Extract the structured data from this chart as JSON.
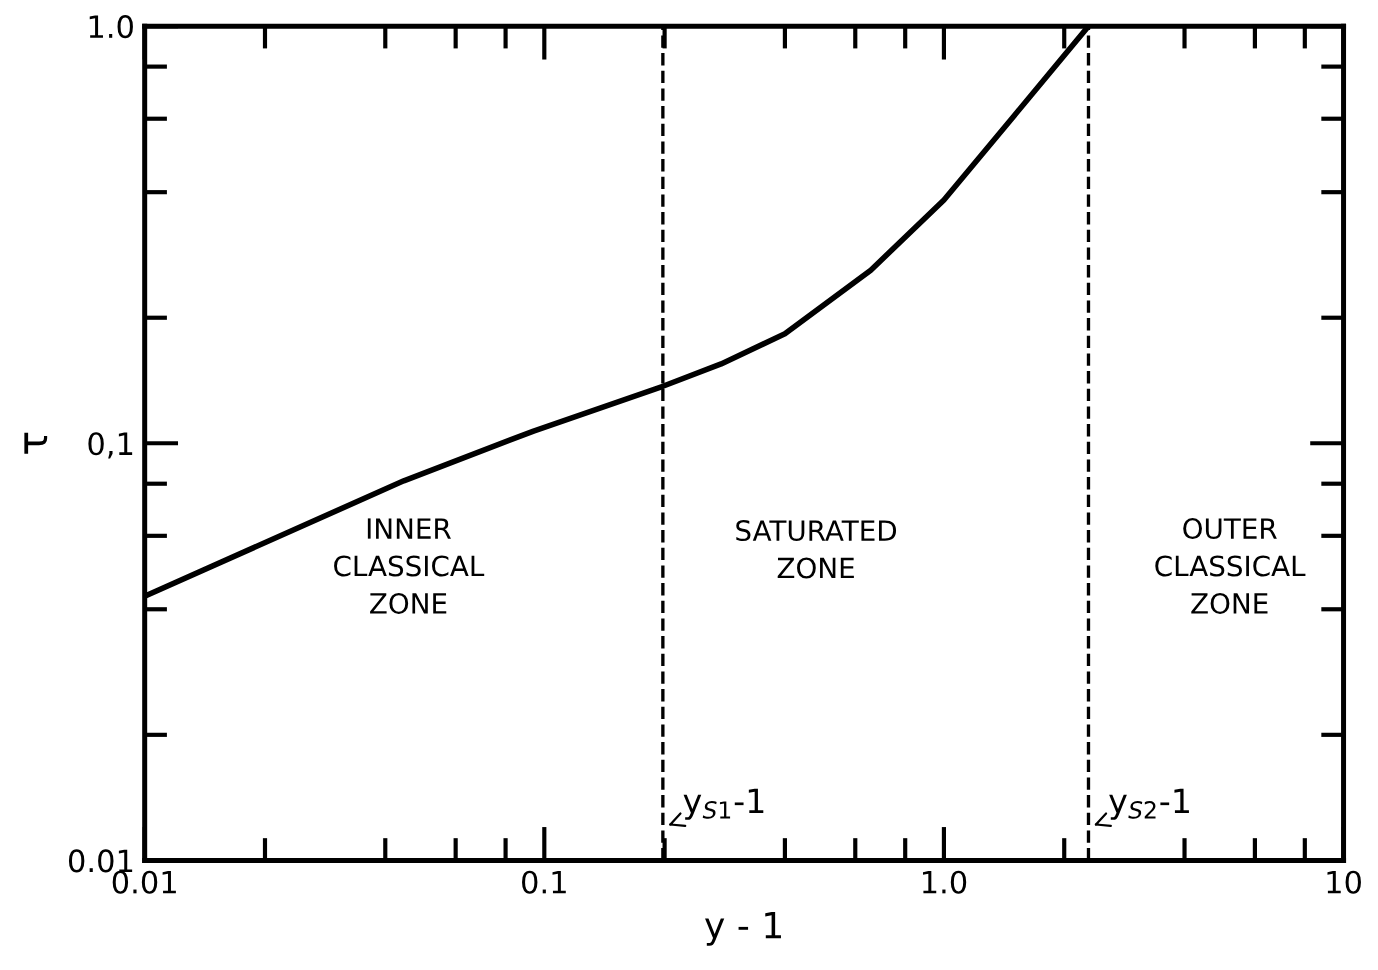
{
  "chart_data": {
    "type": "line",
    "xlabel": "y - 1",
    "ylabel": "τ",
    "log": "xy",
    "xlim": [
      0.01,
      10
    ],
    "ylim": [
      0.01,
      1.0
    ],
    "xticks": [
      0.01,
      0.1,
      {
        "value": 1.0,
        "label": "1.0"
      },
      10
    ],
    "yticks": [
      0.01,
      {
        "value": 0.1,
        "label": "0,1"
      },
      {
        "value": 1.0,
        "label": "1.0"
      }
    ],
    "series": [
      {
        "color": "#000000",
        "x": [
          0.01,
          0.0445,
          0.094,
          0.198,
          0.277,
          0.4,
          0.656,
          1.0,
          1.49,
          2.3
        ],
        "values": [
          0.043,
          0.0813,
          0.107,
          0.137,
          0.155,
          0.183,
          0.26,
          0.383,
          0.606,
          1.0
        ]
      }
    ],
    "line_style": "solid",
    "marker": "none",
    "grid": false,
    "legend": false,
    "ref_lines": [
      {
        "axis": "x",
        "value": 0.198,
        "label": "y$_{S1}$-1",
        "color": "#000000",
        "line_style": "dashed"
      },
      {
        "axis": "x",
        "value": 2.3,
        "label": "y$_{S2}$-1",
        "color": "#000000",
        "line_style": "dashed"
      }
    ],
    "annotations": [
      "INNER\nCLASSICAL\nZONE",
      "SATURATED\nZONE",
      "OUTER\nCLASSICAL\nZONE"
    ]
  }
}
